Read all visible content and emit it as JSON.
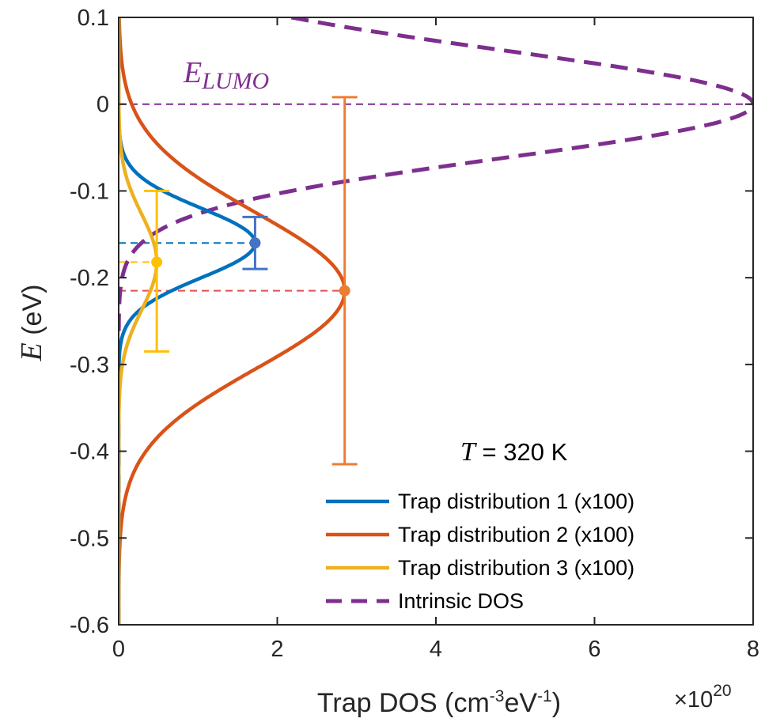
{
  "chart_data": {
    "type": "line",
    "xlabel": "Trap DOS (cm",
    "xlabel_sup1": "-3",
    "xlabel_mid": "eV",
    "xlabel_sup2": "-1",
    "xlabel_end": ")",
    "x_multiplier": "×10",
    "x_multiplier_exp": "20",
    "ylabel_var": "E",
    "ylabel_unit": " (eV)",
    "xlim": [
      0,
      8
    ],
    "ylim": [
      -0.6,
      0.1
    ],
    "xticks": [
      0,
      2,
      4,
      6,
      8
    ],
    "xtick_labels": [
      "0",
      "2",
      "4",
      "6",
      "8"
    ],
    "yticks": [
      0.1,
      0,
      -0.1,
      -0.2,
      -0.3,
      -0.4,
      -0.5,
      -0.6
    ],
    "ytick_labels": [
      "0.1",
      "0",
      "-0.1",
      "-0.2",
      "-0.3",
      "-0.4",
      "-0.5",
      "-0.6"
    ],
    "grid": false,
    "legend_position": "bottom-right",
    "annotations": {
      "temperature_var": "T",
      "temperature_rest": " = 320 K",
      "elumo_main": "E",
      "elumo_sub": "LUMO"
    },
    "series": [
      {
        "name": "Trap distribution 1 (x100)",
        "color": "#0072BD",
        "style": "solid",
        "kind": "gaussian",
        "peak_x": 1.72,
        "center_e": -0.16,
        "sigma": 0.04
      },
      {
        "name": "Trap distribution 2 (x100)",
        "color": "#D95319",
        "style": "solid",
        "kind": "gaussian",
        "peak_x": 2.85,
        "center_e": -0.215,
        "sigma": 0.09
      },
      {
        "name": "Trap distribution 3 (x100)",
        "color": "#EDB120",
        "style": "solid",
        "kind": "gaussian",
        "peak_x": 0.48,
        "center_e": -0.182,
        "sigma": 0.055
      },
      {
        "name": "Intrinsic DOS",
        "color": "#7E2F8E",
        "style": "dashed",
        "kind": "gaussian",
        "peak_x": 8.0,
        "center_e": 0.0,
        "sigma": 0.062
      }
    ],
    "markers": [
      {
        "series": "Trap distribution 1 (x100)",
        "x": 1.72,
        "y": -0.16,
        "y_err_low": -0.19,
        "y_err_high": -0.13,
        "color": "#4472C4"
      },
      {
        "series": "Trap distribution 2 (x100)",
        "x": 2.85,
        "y": -0.215,
        "y_err_low": -0.415,
        "y_err_high": 0.008,
        "color": "#ED7D31"
      },
      {
        "series": "Trap distribution 3 (x100)",
        "x": 0.48,
        "y": -0.182,
        "y_err_low": -0.285,
        "y_err_high": -0.1,
        "color": "#FFC000"
      }
    ],
    "reference_lines": [
      {
        "y": 0.0,
        "color": "#7E2F8E",
        "style": "dashed",
        "span": "full"
      },
      {
        "y": -0.16,
        "color": "#0072BD",
        "style": "dashed",
        "span": "to-marker",
        "series": "Trap distribution 1 (x100)"
      },
      {
        "y": -0.215,
        "color": "#E05050",
        "style": "dashed",
        "span": "to-marker",
        "series": "Trap distribution 2 (x100)"
      },
      {
        "y": -0.182,
        "color": "#FFC000",
        "style": "dashed",
        "span": "to-marker",
        "series": "Trap distribution 3 (x100)"
      }
    ]
  }
}
